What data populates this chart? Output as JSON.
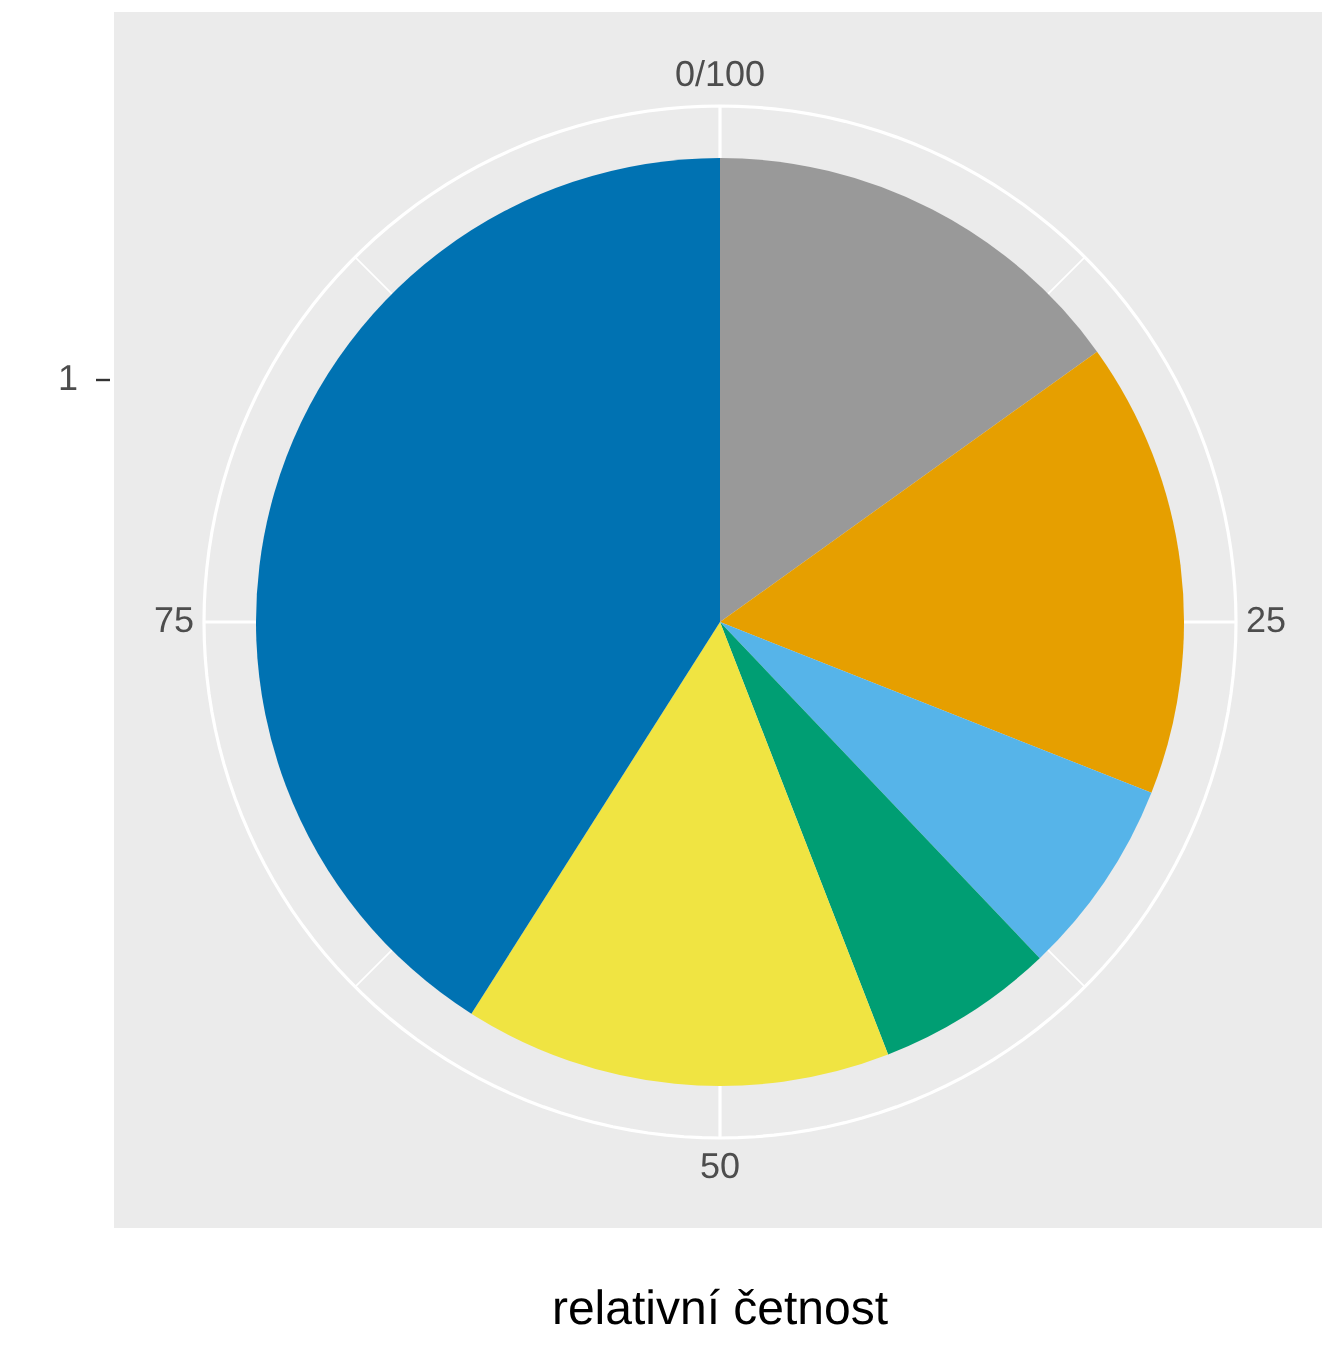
{
  "chart_data": {
    "type": "pie",
    "xlabel": "relativní četnost",
    "categories": [
      null,
      null,
      null,
      null,
      null,
      null
    ],
    "values": [
      15.1,
      15.9,
      6.9,
      6.2,
      14.9,
      41.0
    ],
    "colors": [
      "#999999",
      "#e69f00",
      "#56b4e9",
      "#009e73",
      "#f0e442",
      "#0072b2"
    ],
    "annotations": [
      "0/100",
      "25",
      "50",
      "75",
      "1"
    ],
    "grid": true
  }
}
